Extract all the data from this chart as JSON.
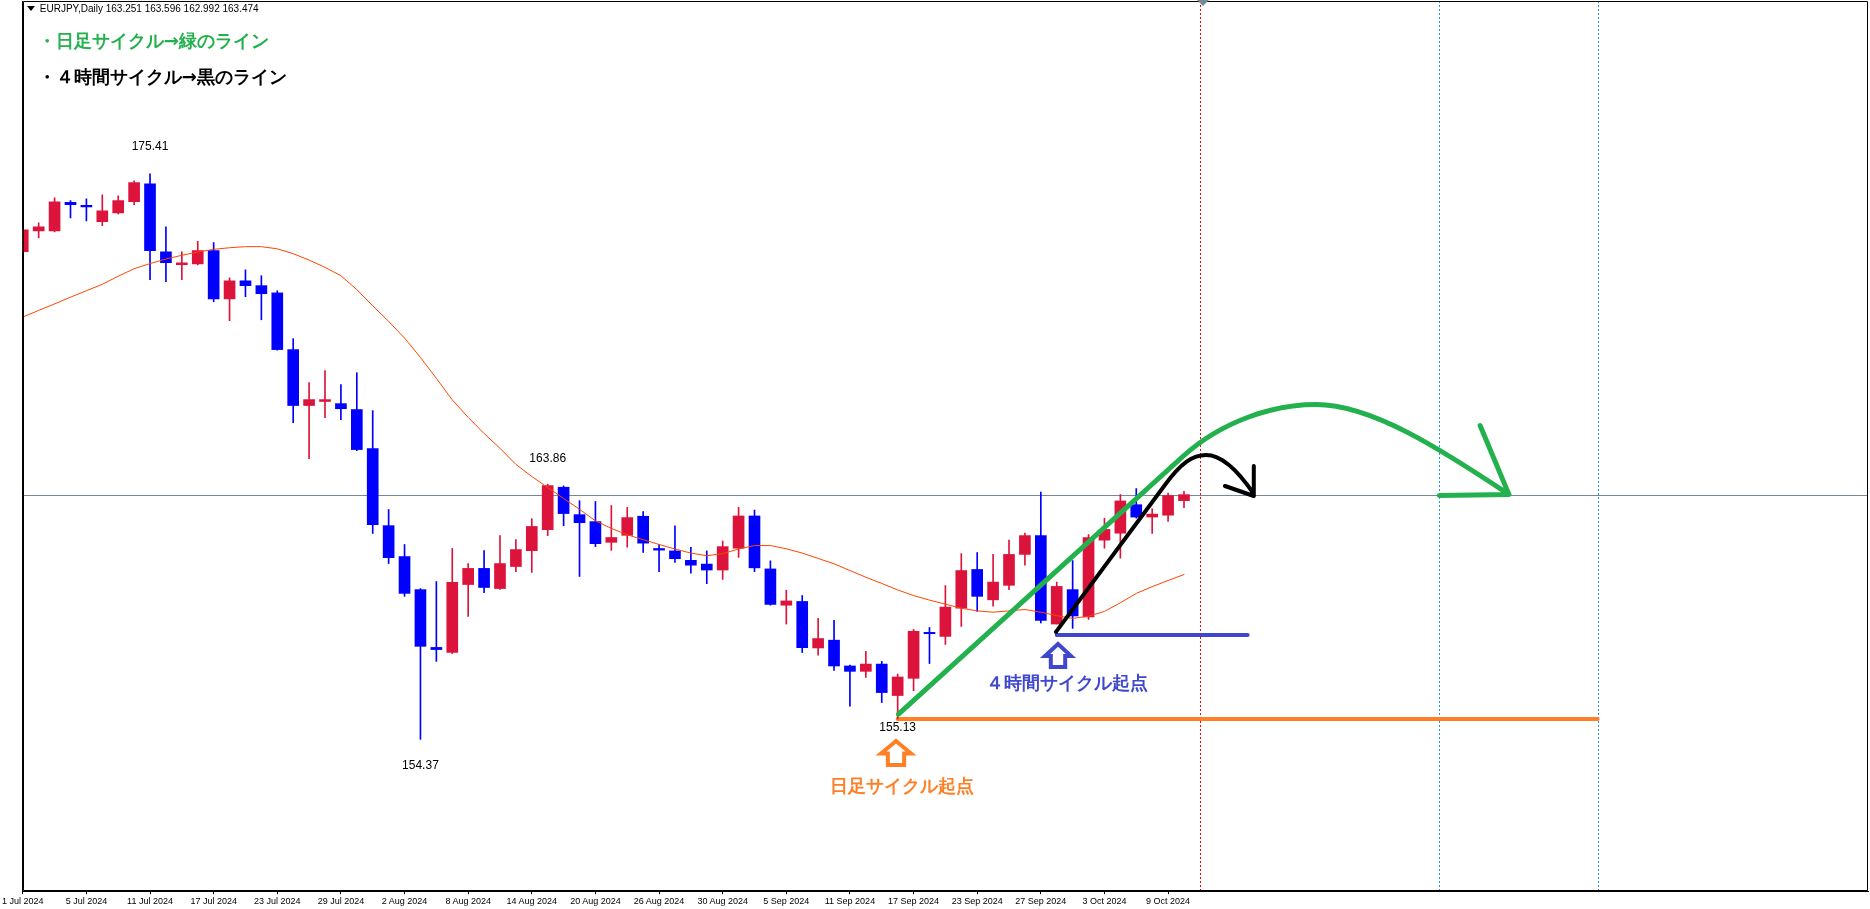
{
  "chart_data": {
    "type": "candlestick",
    "title": "EURJPY,Daily 163.251 163.596 162.992 163.474",
    "categories": [
      "1 Jul 2024",
      null,
      null,
      null,
      "5 Jul 2024",
      null,
      null,
      null,
      "11 Jul 2024",
      null,
      null,
      null,
      "17 Jul 2024",
      null,
      null,
      null,
      "23 Jul 2024",
      null,
      null,
      null,
      "29 Jul 2024",
      null,
      null,
      null,
      "2 Aug 2024",
      null,
      null,
      null,
      "8 Aug 2024",
      null,
      null,
      null,
      "14 Aug 2024",
      null,
      null,
      null,
      "20 Aug 2024",
      null,
      null,
      null,
      "26 Aug 2024",
      null,
      null,
      null,
      "30 Aug 2024",
      null,
      null,
      null,
      "5 Sep 2024",
      null,
      null,
      null,
      "11 Sep 2024",
      null,
      null,
      null,
      "17 Sep 2024",
      null,
      null,
      null,
      "23 Sep 2024",
      null,
      null,
      null,
      "27 Sep 2024",
      null,
      null,
      null,
      "3 Oct 2024",
      null,
      null,
      null,
      "9 Oct 2024",
      null,
      null,
      null,
      null,
      null,
      null,
      null,
      null,
      null,
      null,
      null,
      null,
      null,
      null,
      null,
      null,
      null,
      null,
      null,
      null,
      null,
      null,
      null,
      null,
      null,
      null,
      null,
      null,
      null,
      null,
      null,
      null,
      null,
      null,
      null,
      null,
      null,
      null,
      null,
      null,
      null,
      null,
      null,
      null
    ],
    "ohlc": [
      [
        172.51,
        173.38,
        172.45,
        173.33
      ],
      [
        173.29,
        173.59,
        173.03,
        173.44
      ],
      [
        173.29,
        174.52,
        173.25,
        174.37
      ],
      [
        174.35,
        174.41,
        173.77,
        174.26
      ],
      [
        174.24,
        174.48,
        173.66,
        174.18
      ],
      [
        173.63,
        174.63,
        173.48,
        174.03
      ],
      [
        173.96,
        174.59,
        173.92,
        174.41
      ],
      [
        174.37,
        175.15,
        174.26,
        175.08
      ],
      [
        175.04,
        175.41,
        171.47,
        172.55
      ],
      [
        172.51,
        173.44,
        171.4,
        172.1
      ],
      [
        172.03,
        172.51,
        171.47,
        172.1
      ],
      [
        172.06,
        172.9,
        172.02,
        172.55
      ],
      [
        172.55,
        172.85,
        170.65,
        170.76
      ],
      [
        170.76,
        171.54,
        169.95,
        171.43
      ],
      [
        171.43,
        171.84,
        170.84,
        171.25
      ],
      [
        171.25,
        171.62,
        169.98,
        170.95
      ],
      [
        170.98,
        171.06,
        168.85,
        168.87
      ],
      [
        168.87,
        169.28,
        166.15,
        166.79
      ],
      [
        166.79,
        167.64,
        164.81,
        167.01
      ],
      [
        166.94,
        168.09,
        166.34,
        167.01
      ],
      [
        166.86,
        167.57,
        166.26,
        166.67
      ],
      [
        166.64,
        168.01,
        165.11,
        165.15
      ],
      [
        165.19,
        166.6,
        162.03,
        162.36
      ],
      [
        162.32,
        162.92,
        160.91,
        161.13
      ],
      [
        161.17,
        161.62,
        159.69,
        159.8
      ],
      [
        159.94,
        159.98,
        154.37,
        157.83
      ],
      [
        157.79,
        160.24,
        157.27,
        157.71
      ],
      [
        157.6,
        161.47,
        157.56,
        160.21
      ],
      [
        160.13,
        160.91,
        158.94,
        160.73
      ],
      [
        160.73,
        161.39,
        159.83,
        160.02
      ],
      [
        159.98,
        161.95,
        159.95,
        160.91
      ],
      [
        160.8,
        161.8,
        160.61,
        161.43
      ],
      [
        161.39,
        162.58,
        160.58,
        162.29
      ],
      [
        162.17,
        163.86,
        161.95,
        163.81
      ],
      [
        163.75,
        163.8,
        162.32,
        162.77
      ],
      [
        162.73,
        163.25,
        160.43,
        162.43
      ],
      [
        162.47,
        163.22,
        161.54,
        161.65
      ],
      [
        161.7,
        163.07,
        161.4,
        161.88
      ],
      [
        161.96,
        163.0,
        161.52,
        162.62
      ],
      [
        162.67,
        162.84,
        161.32,
        161.67
      ],
      [
        161.47,
        161.62,
        160.61,
        161.41
      ],
      [
        161.38,
        162.31,
        160.95,
        161.09
      ],
      [
        161.03,
        161.51,
        160.55,
        160.85
      ],
      [
        160.89,
        161.38,
        160.16,
        160.67
      ],
      [
        160.67,
        161.75,
        160.32,
        161.54
      ],
      [
        161.48,
        163.0,
        161.14,
        162.68
      ],
      [
        162.68,
        162.9,
        160.61,
        160.75
      ],
      [
        160.71,
        161.01,
        159.36,
        159.39
      ],
      [
        159.36,
        159.92,
        158.66,
        159.52
      ],
      [
        159.5,
        159.72,
        157.6,
        157.78
      ],
      [
        157.77,
        158.87,
        157.5,
        158.12
      ],
      [
        158.06,
        158.8,
        156.93,
        157.1
      ],
      [
        157.1,
        157.13,
        155.6,
        156.9
      ],
      [
        156.9,
        157.64,
        156.67,
        157.17
      ],
      [
        157.17,
        157.27,
        155.74,
        156.11
      ],
      [
        156.0,
        156.8,
        155.13,
        156.69
      ],
      [
        156.64,
        158.46,
        156.18,
        158.39
      ],
      [
        158.35,
        158.53,
        157.19,
        158.3
      ],
      [
        158.2,
        160.09,
        157.9,
        159.29
      ],
      [
        159.25,
        161.28,
        158.57,
        160.65
      ],
      [
        160.69,
        161.32,
        159.13,
        159.69
      ],
      [
        159.56,
        161.25,
        159.32,
        160.22
      ],
      [
        160.1,
        161.78,
        159.94,
        161.25
      ],
      [
        161.25,
        162.04,
        160.85,
        161.95
      ],
      [
        161.95,
        163.57,
        158.7,
        158.79
      ],
      [
        158.66,
        160.22,
        158.66,
        160.06
      ],
      [
        159.94,
        161.02,
        158.5,
        158.96
      ],
      [
        158.92,
        161.99,
        158.83,
        161.88
      ],
      [
        161.78,
        162.6,
        161.48,
        162.18
      ],
      [
        162.04,
        163.48,
        161.11,
        163.24
      ],
      [
        163.1,
        163.7,
        162.6,
        162.64
      ],
      [
        162.64,
        162.95,
        162.03,
        162.75
      ],
      [
        162.71,
        163.53,
        162.48,
        163.44
      ],
      [
        163.251,
        163.596,
        162.992,
        163.474
      ],
      null,
      null,
      null,
      null,
      null,
      null,
      null,
      null,
      null,
      null,
      null,
      null,
      null,
      null,
      null,
      null,
      null,
      null,
      null,
      null,
      null,
      null,
      null,
      null,
      null,
      null,
      null,
      null,
      null,
      null,
      null,
      null,
      null,
      null,
      null,
      null,
      null,
      null,
      null,
      null,
      null,
      null,
      null
    ],
    "colors": [
      "#dc143c",
      "#dc143c",
      "#dc143c",
      "#0000ff",
      "#0000ff",
      "#dc143c",
      "#dc143c",
      "#dc143c",
      "#0000ff",
      "#0000ff",
      "#dc143c",
      "#dc143c",
      "#0000ff",
      "#dc143c",
      "#0000ff",
      "#0000ff",
      "#0000ff",
      "#0000ff",
      "#dc143c",
      "#dc143c",
      "#0000ff",
      "#0000ff",
      "#0000ff",
      "#0000ff",
      "#0000ff",
      "#0000ff",
      "#0000ff",
      "#dc143c",
      "#dc143c",
      "#0000ff",
      "#dc143c",
      "#dc143c",
      "#dc143c",
      "#dc143c",
      "#0000ff",
      "#0000ff",
      "#0000ff",
      "#dc143c",
      "#dc143c",
      "#0000ff",
      "#0000ff",
      "#0000ff",
      "#0000ff",
      "#0000ff",
      "#dc143c",
      "#dc143c",
      "#0000ff",
      "#0000ff",
      "#dc143c",
      "#0000ff",
      "#dc143c",
      "#0000ff",
      "#0000ff",
      "#dc143c",
      "#0000ff",
      "#dc143c",
      "#dc143c",
      "#0000ff",
      "#dc143c",
      "#dc143c",
      "#0000ff",
      "#dc143c",
      "#dc143c",
      "#dc143c",
      "#0000ff",
      "#dc143c",
      "#0000ff",
      "#dc143c",
      "#dc143c",
      "#dc143c",
      "#0000ff",
      "#dc143c",
      "#dc143c",
      "#dc143c",
      null,
      null,
      null,
      null,
      null,
      null,
      null,
      null,
      null,
      null,
      null,
      null,
      null,
      null,
      null,
      null,
      null,
      null,
      null,
      null,
      null,
      null,
      null,
      null,
      null,
      null,
      null,
      null,
      null,
      null,
      null,
      null,
      null,
      null,
      null,
      null,
      null,
      null,
      null,
      null,
      null,
      null,
      null
    ],
    "series": [
      {
        "type": "line",
        "color": "#ff4500",
        "values": [
          170.08,
          170.33,
          170.57,
          170.82,
          171.06,
          171.3,
          171.6,
          171.88,
          172.07,
          172.24,
          172.38,
          172.5,
          172.6,
          172.66,
          172.7,
          172.7,
          172.62,
          172.44,
          172.2,
          171.93,
          171.62,
          171.1,
          170.5,
          169.92,
          169.3,
          168.58,
          167.8,
          167.0,
          166.35,
          165.75,
          165.2,
          164.6,
          164.15,
          163.74,
          163.33,
          162.93,
          162.5,
          162.22,
          161.98,
          161.8,
          161.62,
          161.45,
          161.3,
          161.2,
          161.28,
          161.45,
          161.58,
          161.58,
          161.46,
          161.3,
          161.1,
          160.9,
          160.65,
          160.4,
          160.17,
          159.93,
          159.72,
          159.55,
          159.4,
          159.25,
          159.15,
          159.1,
          159.15,
          159.2,
          159.1,
          158.97,
          158.87,
          158.95,
          159.13,
          159.45,
          159.8,
          160.05,
          160.28,
          160.5,
          null,
          null,
          null,
          null,
          null,
          null,
          null,
          null,
          null,
          null,
          null,
          null,
          null,
          null,
          null,
          null,
          null,
          null,
          null,
          null,
          null,
          null,
          null,
          null,
          null,
          null,
          null,
          null,
          null,
          null,
          null,
          null,
          null,
          null,
          null,
          null,
          null,
          null,
          null,
          null,
          null,
          null,
          null
        ]
      },
      {
        "type": "line",
        "color": "#ff7f27",
        "values": [
          null,
          null,
          null,
          null,
          null,
          null,
          null,
          null,
          null,
          null,
          null,
          null,
          null,
          null,
          null,
          null,
          null,
          null,
          null,
          null,
          null,
          null,
          null,
          null,
          null,
          null,
          null,
          null,
          null,
          null,
          null,
          null,
          null,
          null,
          null,
          null,
          null,
          null,
          null,
          null,
          null,
          null,
          null,
          null,
          null,
          null,
          null,
          null,
          null,
          null,
          null,
          null,
          null,
          null,
          null,
          155.13,
          155.13,
          155.13,
          155.13,
          155.13,
          155.13,
          155.13,
          155.13,
          155.13,
          155.13,
          155.13,
          155.13,
          155.13,
          155.13,
          155.13,
          155.13,
          155.13,
          155.13,
          155.13,
          155.13,
          155.13,
          155.13,
          155.13,
          155.13,
          155.13,
          155.13,
          155.13,
          155.13,
          155.13,
          155.13,
          155.13,
          155.13,
          155.13,
          155.13,
          155.13,
          155.13,
          155.13,
          155.13,
          155.13,
          155.13,
          155.13,
          155.13,
          155.13,
          155.13,
          155.13,
          null,
          null,
          null,
          null,
          null,
          null,
          null,
          null,
          null,
          null,
          null,
          null,
          null,
          null,
          null,
          null,
          null
        ]
      },
      {
        "type": "line",
        "color": "#3f48cc",
        "values": [
          null,
          null,
          null,
          null,
          null,
          null,
          null,
          null,
          null,
          null,
          null,
          null,
          null,
          null,
          null,
          null,
          null,
          null,
          null,
          null,
          null,
          null,
          null,
          null,
          null,
          null,
          null,
          null,
          null,
          null,
          null,
          null,
          null,
          null,
          null,
          null,
          null,
          null,
          null,
          null,
          null,
          null,
          null,
          null,
          null,
          null,
          null,
          null,
          null,
          null,
          null,
          null,
          null,
          null,
          null,
          null,
          null,
          null,
          null,
          null,
          null,
          null,
          null,
          null,
          null,
          158.25,
          158.25,
          158.25,
          158.25,
          158.25,
          158.25,
          158.25,
          158.25,
          158.25,
          158.25,
          158.25,
          158.25,
          158.25,
          null,
          null,
          null,
          null,
          null,
          null,
          null,
          null,
          null,
          null,
          null,
          null,
          null,
          null,
          null,
          null,
          null,
          null,
          null,
          null,
          null,
          null,
          null,
          null,
          null,
          null,
          null,
          null,
          null,
          null,
          null,
          null,
          null,
          null,
          null,
          null,
          null,
          null,
          null
        ]
      }
    ],
    "annotations": [
      "・日足サイクル→緑のライン",
      "・４時間サイクル→黒のライン",
      {
        "text": "175.41",
        "x": "11 Jul 2024",
        "y": 175.41
      },
      {
        "text": "163.86",
        "y": 163.86
      },
      {
        "text": "154.37",
        "y": 154.37
      },
      {
        "text": "155.13",
        "y": 155.13
      },
      "日足サイクル起点",
      {
        "text": "４時間サイクル起点",
        "y": 158.25
      }
    ],
    "ref_lines": [
      {
        "axis": "y",
        "value": 163.474,
        "color": "#778899"
      }
    ],
    "ylim": [
      148.72,
      181.84
    ],
    "tick_labels": "x"
  }
}
